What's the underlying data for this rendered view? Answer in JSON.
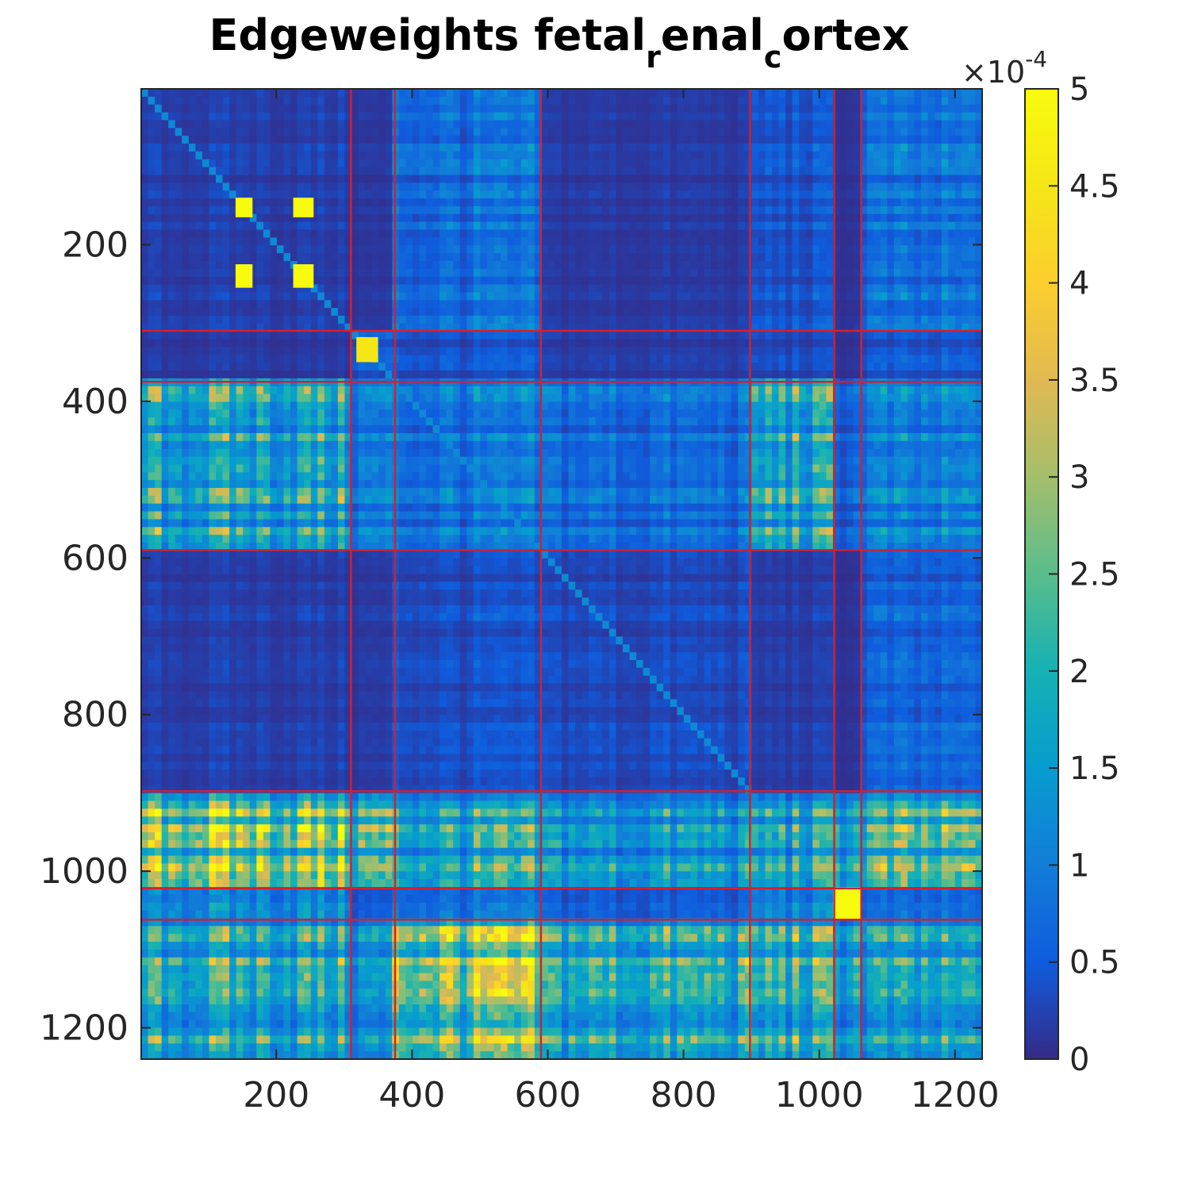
{
  "chart_data": {
    "type": "heatmap",
    "title": {
      "parts": [
        {
          "text": "Edgeweights fetal",
          "sub": false
        },
        {
          "text": "r",
          "sub": true
        },
        {
          "text": "enal",
          "sub": false
        },
        {
          "text": "c",
          "sub": true
        },
        {
          "text": "ortex",
          "sub": false
        }
      ]
    },
    "xlabel": "",
    "ylabel": "",
    "xlim": [
      1,
      1240
    ],
    "ylim": [
      1,
      1240
    ],
    "y_reversed": true,
    "xticks": [
      200,
      400,
      600,
      800,
      1000,
      1200
    ],
    "xtick_labels": [
      "200",
      "400",
      "600",
      "800",
      "1000",
      "1200"
    ],
    "yticks": [
      200,
      400,
      600,
      800,
      1000,
      1200
    ],
    "ytick_labels": [
      "200",
      "400",
      "600",
      "800",
      "1000",
      "1200"
    ],
    "colormap": "parula",
    "clim": [
      0,
      0.0005
    ],
    "colorbar": {
      "ticks": [
        0,
        0.5,
        1,
        1.5,
        2,
        2.5,
        3,
        3.5,
        4,
        4.5,
        5
      ],
      "tick_labels": [
        "0",
        "0.5",
        "1",
        "1.5",
        "2",
        "2.5",
        "3",
        "3.5",
        "4",
        "4.5",
        "5"
      ],
      "exponent_prefix": "×10",
      "exponent": "-4"
    },
    "cluster_boundaries": [
      310,
      375,
      590,
      898,
      1022,
      1062
    ],
    "cluster_ranges": [
      [
        1,
        310
      ],
      [
        310,
        375
      ],
      [
        375,
        590
      ],
      [
        590,
        898
      ],
      [
        898,
        1022
      ],
      [
        1022,
        1062
      ],
      [
        1062,
        1240
      ]
    ],
    "block_levels": [
      [
        0.2,
        0.12,
        0.7,
        0.15,
        0.4,
        0.1,
        0.7
      ],
      [
        0.15,
        0.5,
        0.4,
        0.18,
        0.3,
        0.1,
        0.4
      ],
      [
        1.6,
        0.9,
        0.8,
        0.7,
        1.6,
        0.6,
        0.9
      ],
      [
        0.2,
        0.15,
        0.35,
        0.3,
        0.18,
        0.1,
        0.55
      ],
      [
        2.6,
        2.0,
        1.6,
        1.3,
        1.5,
        1.7,
        1.9
      ],
      [
        0.9,
        0.35,
        0.6,
        0.4,
        0.8,
        5.0,
        0.5
      ],
      [
        1.7,
        1.2,
        2.6,
        1.7,
        1.8,
        1.5,
        1.4
      ]
    ],
    "bright_blocks": [
      {
        "x": [
          140,
          165
        ],
        "y": [
          140,
          165
        ],
        "value": 5.0
      },
      {
        "x": [
          225,
          255
        ],
        "y": [
          140,
          165
        ],
        "value": 5.0
      },
      {
        "x": [
          140,
          165
        ],
        "y": [
          225,
          255
        ],
        "value": 5.0
      },
      {
        "x": [
          225,
          255
        ],
        "y": [
          225,
          255
        ],
        "value": 5.0
      },
      {
        "x": [
          318,
          350
        ],
        "y": [
          318,
          350
        ],
        "value": 4.5
      },
      {
        "x": [
          1022,
          1062
        ],
        "y": [
          1022,
          1062
        ],
        "value": 5.0
      }
    ],
    "boundary_color": "#d4202c"
  }
}
